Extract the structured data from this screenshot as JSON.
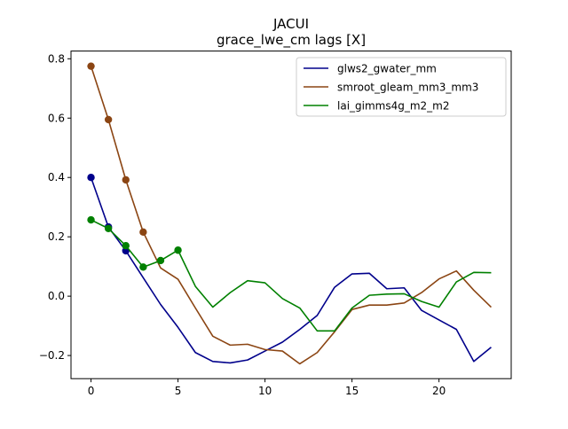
{
  "chart_data": {
    "type": "line",
    "title": "JACUI",
    "subtitle": "grace_lwe_cm lags [X]",
    "xlabel": "",
    "ylabel": "",
    "xlim": [
      -1.15,
      24.15
    ],
    "ylim": [
      -0.278,
      0.826
    ],
    "xticks": [
      0,
      5,
      10,
      15,
      20
    ],
    "yticks": [
      -0.2,
      0.0,
      0.2,
      0.4,
      0.6,
      0.8
    ],
    "ytick_labels": [
      "−0.2",
      "0.0",
      "0.2",
      "0.4",
      "0.6",
      "0.8"
    ],
    "grid": false,
    "legend_position": "upper-right",
    "x": [
      0,
      1,
      2,
      3,
      4,
      5,
      6,
      7,
      8,
      9,
      10,
      11,
      12,
      13,
      14,
      15,
      16,
      17,
      18,
      19,
      20,
      21,
      22,
      23
    ],
    "series": [
      {
        "name": "glws2_gwater_mm",
        "color": "#00008b",
        "values": [
          0.4,
          0.233,
          0.153,
          0.062,
          -0.028,
          -0.105,
          -0.19,
          -0.22,
          -0.225,
          -0.215,
          -0.185,
          -0.155,
          -0.112,
          -0.065,
          0.03,
          0.075,
          0.077,
          0.025,
          0.028,
          -0.048,
          -0.08,
          -0.112,
          -0.22,
          -0.172
        ],
        "marker_points": 3
      },
      {
        "name": "smroot_gleam_mm3_mm3",
        "color": "#8b4513",
        "values": [
          0.775,
          0.595,
          0.392,
          0.216,
          0.095,
          0.057,
          -0.04,
          -0.135,
          -0.165,
          -0.162,
          -0.18,
          -0.185,
          -0.228,
          -0.19,
          -0.12,
          -0.045,
          -0.03,
          -0.03,
          -0.023,
          0.012,
          0.058,
          0.085,
          0.02,
          -0.037
        ],
        "marker_points": 4
      },
      {
        "name": "lai_gimms4g_m2_m2",
        "color": "#008000",
        "values": [
          0.257,
          0.228,
          0.17,
          0.098,
          0.12,
          0.155,
          0.033,
          -0.037,
          0.012,
          0.052,
          0.045,
          -0.008,
          -0.04,
          -0.117,
          -0.117,
          -0.04,
          0.003,
          0.007,
          0.008,
          -0.018,
          -0.037,
          0.048,
          0.08,
          0.079
        ],
        "marker_points": 6
      }
    ]
  }
}
